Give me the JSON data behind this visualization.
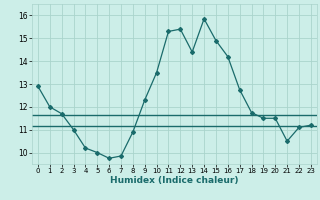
{
  "xlabel": "Humidex (Indice chaleur)",
  "background_color": "#cceee8",
  "grid_color": "#aad4cc",
  "line_color": "#1a6b6b",
  "xlim": [
    -0.5,
    23.5
  ],
  "ylim": [
    9.5,
    16.5
  ],
  "yticks": [
    10,
    11,
    12,
    13,
    14,
    15,
    16
  ],
  "xticks": [
    0,
    1,
    2,
    3,
    4,
    5,
    6,
    7,
    8,
    9,
    10,
    11,
    12,
    13,
    14,
    15,
    16,
    17,
    18,
    19,
    20,
    21,
    22,
    23
  ],
  "series1_x": [
    0,
    1,
    2,
    3,
    4,
    5,
    6,
    7,
    8,
    9,
    10,
    11,
    12,
    13,
    14,
    15,
    16,
    17,
    18,
    19,
    20,
    21,
    22,
    23
  ],
  "series1_y": [
    12.9,
    12.0,
    11.7,
    11.0,
    10.2,
    10.0,
    9.75,
    9.85,
    10.9,
    12.3,
    13.5,
    15.3,
    15.4,
    14.4,
    15.85,
    14.9,
    14.2,
    12.75,
    11.75,
    11.5,
    11.5,
    10.5,
    11.1,
    11.2
  ],
  "series2_x": [
    3,
    19
  ],
  "series2_y": [
    11.65,
    11.65
  ],
  "series3_x": [
    3,
    19
  ],
  "series3_y": [
    11.15,
    11.15
  ],
  "series4_x": [
    3,
    9
  ],
  "series4_y": [
    11.65,
    11.65
  ],
  "series5_x": [
    3,
    9
  ],
  "series5_y": [
    11.15,
    11.15
  ],
  "horiz1_y": 11.65,
  "horiz2_y": 11.15
}
